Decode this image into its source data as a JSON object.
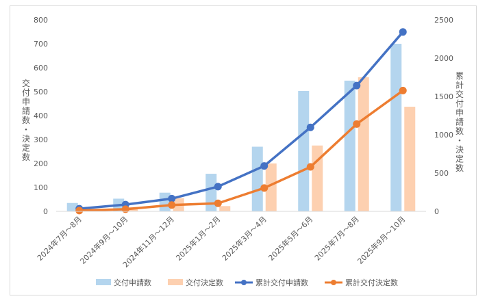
{
  "chart_data": {
    "type": "bar",
    "categories": [
      "2024年7月～8月",
      "2024年9月～10月",
      "2024年11月～12月",
      "2025年1月～2月",
      "2025年3月～4月",
      "2025年5月～6月",
      "2025年7月～8月",
      "2025年9月～10月"
    ],
    "series": [
      {
        "name": "交付申請数",
        "type": "bar",
        "axis": "left",
        "color": "#b4d5ee",
        "values": [
          35,
          53,
          78,
          157,
          270,
          503,
          546,
          700
        ]
      },
      {
        "name": "交付決定数",
        "type": "bar",
        "axis": "left",
        "color": "#fdd0b0",
        "values": [
          10,
          18,
          55,
          22,
          200,
          275,
          560,
          437
        ]
      },
      {
        "name": "累計交付申請数",
        "type": "line",
        "axis": "right",
        "color": "#4472c4",
        "values": [
          35,
          88,
          166,
          323,
          593,
          1096,
          1642,
          2342
        ]
      },
      {
        "name": "累計交付決定数",
        "type": "line",
        "axis": "right",
        "color": "#ed7d31",
        "values": [
          10,
          28,
          83,
          105,
          305,
          580,
          1140,
          1577
        ]
      }
    ],
    "ylabel": "交付申請数・決定数",
    "y2label": "累計交付申請数・決定数",
    "ylim": [
      0,
      800
    ],
    "y2lim": [
      0,
      2500
    ],
    "yticks": [
      "0",
      "100",
      "200",
      "300",
      "400",
      "500",
      "600",
      "700",
      "800"
    ],
    "y2ticks": [
      "0",
      "500",
      "1000",
      "1500",
      "2000",
      "2500"
    ],
    "grid": false,
    "legend": "bottom"
  }
}
